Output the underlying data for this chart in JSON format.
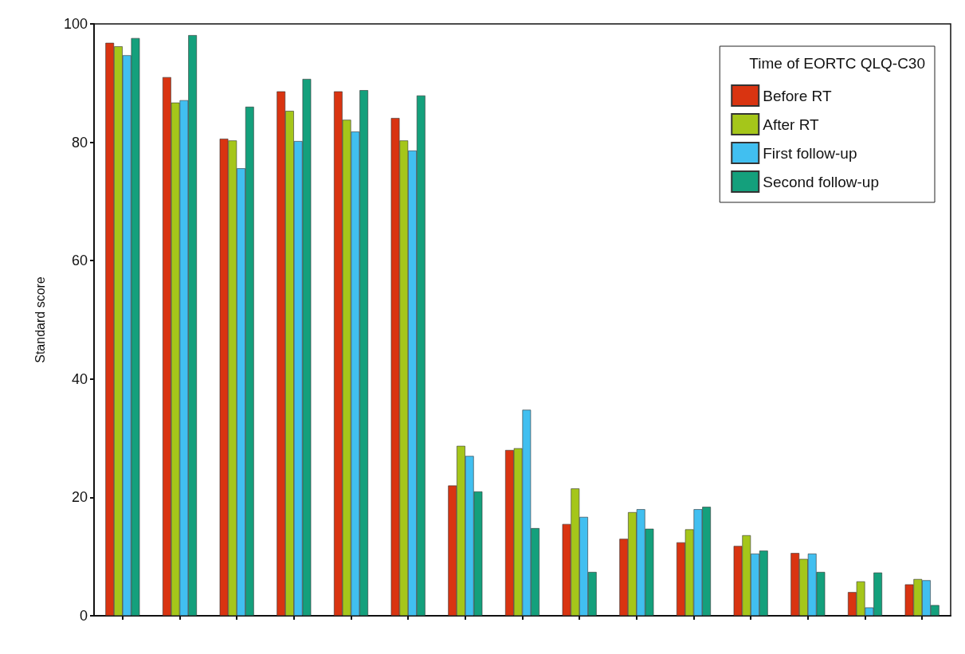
{
  "chart_data": {
    "type": "bar",
    "ylabel": "Standard score",
    "legend_title": "Time of EORTC QLQ-C30",
    "categories": [
      null,
      null,
      null,
      null,
      null,
      null,
      null,
      null,
      null,
      null,
      null,
      null,
      null,
      null,
      null
    ],
    "series": [
      {
        "name": "Before RT",
        "color": "#d93411",
        "values": [
          96.8,
          91.0,
          80.6,
          88.6,
          88.6,
          84.1,
          22,
          28,
          15.5,
          13,
          12.4,
          11.8,
          10.6,
          4,
          5.3
        ]
      },
      {
        "name": "After RT",
        "color": "#a5c61a",
        "values": [
          96.2,
          86.7,
          80.3,
          85.3,
          83.8,
          80.3,
          28.7,
          28.3,
          21.5,
          17.5,
          14.6,
          13.6,
          9.6,
          5.8,
          6.2
        ]
      },
      {
        "name": "First follow-up",
        "color": "#41bff0",
        "values": [
          94.7,
          87.1,
          75.6,
          80.2,
          81.8,
          78.6,
          27,
          34.8,
          16.7,
          18,
          18,
          10.5,
          10.5,
          1.4,
          6
        ]
      },
      {
        "name": "Second follow-up",
        "color": "#14a07c",
        "values": [
          97.6,
          98.1,
          86,
          90.7,
          88.8,
          87.9,
          21,
          14.8,
          7.4,
          14.7,
          18.4,
          11,
          7.4,
          7.3,
          1.8
        ]
      }
    ],
    "ylim": [
      0,
      100
    ],
    "yticks": [
      0,
      20,
      40,
      60,
      80,
      100
    ],
    "grid": false,
    "legend": "top right"
  }
}
